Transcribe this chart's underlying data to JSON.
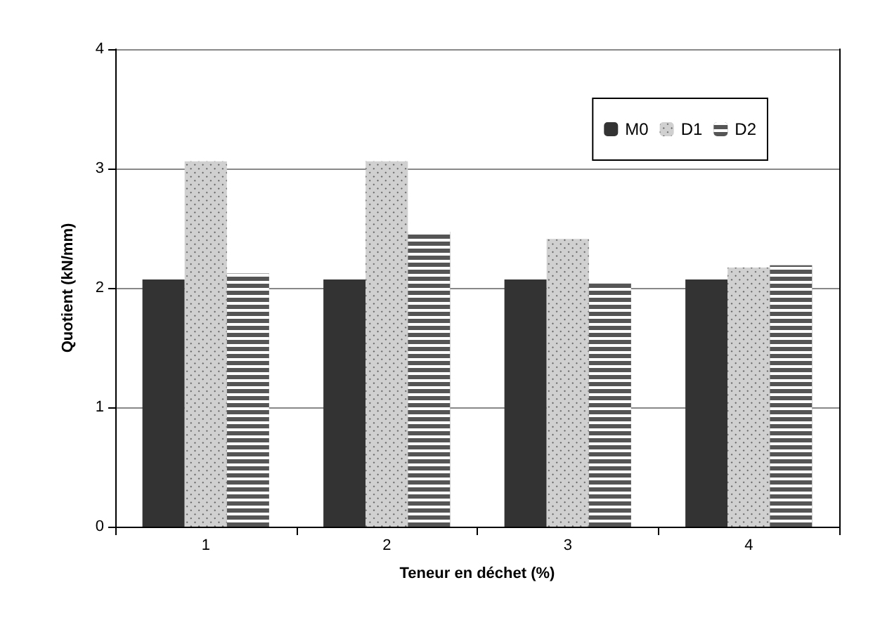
{
  "chart_data": {
    "type": "bar",
    "xlabel": "Teneur en déchet (%)",
    "ylabel": "Quotient (kN/mm)",
    "categories": [
      "1",
      "2",
      "3",
      "4"
    ],
    "series": [
      {
        "name": "M0",
        "color": "#333333",
        "values": [
          2.07,
          2.07,
          2.07,
          2.07
        ]
      },
      {
        "name": "D1",
        "color": "#d0d0d0",
        "values": [
          3.06,
          3.06,
          2.41,
          2.17
        ]
      },
      {
        "name": "D2",
        "color": "#555555",
        "values": [
          2.12,
          2.47,
          2.04,
          2.19
        ]
      }
    ],
    "ylim": [
      0,
      4
    ],
    "yticks": [
      0,
      1,
      2,
      3,
      4
    ],
    "grid": "y",
    "legend": "top right"
  }
}
